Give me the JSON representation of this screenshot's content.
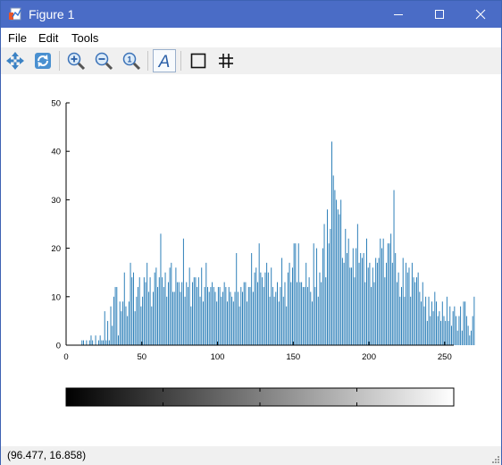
{
  "window": {
    "title": "Figure 1",
    "controls": [
      "minimize",
      "maximize",
      "close"
    ]
  },
  "menu": {
    "items": [
      {
        "label": "File"
      },
      {
        "label": "Edit"
      },
      {
        "label": "Tools"
      }
    ]
  },
  "toolbar": {
    "buttons": [
      {
        "name": "pan-icon"
      },
      {
        "name": "rotate-icon"
      },
      {
        "name": "zoom-in-icon"
      },
      {
        "name": "zoom-out-icon"
      },
      {
        "name": "zoom-reset-icon"
      },
      {
        "name": "insert-text-icon",
        "label": "A"
      },
      {
        "name": "toggle-axes-box-icon"
      },
      {
        "name": "toggle-grid-icon"
      }
    ]
  },
  "status": {
    "coordinates": "(96.477, 16.858)"
  },
  "colors": {
    "titlebar": "#4a6cc6",
    "bars": "#1f77b4",
    "toolbar": "#f0f0f0"
  },
  "chart_data": {
    "type": "bar",
    "xlim": [
      0,
      256
    ],
    "ylim": [
      0,
      50
    ],
    "xticks": [
      0,
      50,
      100,
      150,
      200,
      250
    ],
    "yticks": [
      0,
      10,
      20,
      30,
      40,
      50
    ],
    "grid": false,
    "colorbar": {
      "colormap": "gray",
      "orientation": "horizontal",
      "range": [
        0,
        255
      ]
    },
    "x_start": 0,
    "values": [
      0,
      0,
      0,
      0,
      0,
      0,
      0,
      0,
      0,
      0,
      1,
      1,
      0,
      1,
      0,
      1,
      2,
      1,
      0,
      2,
      0,
      1,
      2,
      1,
      1,
      7,
      1,
      5,
      1,
      8,
      4,
      10,
      12,
      12,
      2,
      9,
      7,
      9,
      15,
      8,
      6,
      9,
      17,
      14,
      15,
      7,
      10,
      12,
      14,
      8,
      10,
      14,
      13,
      17,
      11,
      14,
      8,
      11,
      15,
      16,
      12,
      14,
      23,
      14,
      12,
      15,
      10,
      13,
      16,
      17,
      11,
      11,
      16,
      13,
      13,
      11,
      13,
      22,
      10,
      13,
      12,
      16,
      8,
      13,
      14,
      14,
      12,
      14,
      10,
      16,
      9,
      12,
      17,
      12,
      11,
      12,
      13,
      12,
      11,
      9,
      12,
      12,
      10,
      11,
      13,
      12,
      9,
      12,
      11,
      10,
      9,
      11,
      19,
      11,
      8,
      12,
      11,
      13,
      13,
      9,
      12,
      12,
      19,
      11,
      15,
      16,
      13,
      21,
      15,
      14,
      12,
      15,
      17,
      15,
      10,
      16,
      12,
      10,
      11,
      13,
      9,
      12,
      18,
      10,
      13,
      8,
      15,
      17,
      13,
      16,
      21,
      21,
      13,
      21,
      13,
      13,
      12,
      12,
      17,
      12,
      14,
      11,
      9,
      21,
      12,
      20,
      10,
      15,
      13,
      20,
      25,
      14,
      28,
      21,
      24,
      42,
      35,
      32,
      30,
      28,
      27,
      30,
      18,
      17,
      24,
      19,
      22,
      16,
      16,
      20,
      14,
      20,
      25,
      17,
      19,
      18,
      19,
      13,
      22,
      16,
      17,
      12,
      16,
      13,
      18,
      17,
      18,
      22,
      20,
      22,
      14,
      17,
      21,
      21,
      23,
      17,
      32,
      19,
      13,
      15,
      10,
      12,
      18,
      10,
      17,
      15,
      16,
      10,
      17,
      14,
      13,
      14,
      15,
      11,
      9,
      13,
      8,
      10,
      5,
      10,
      6,
      9,
      7,
      11,
      9,
      6,
      7,
      5,
      9,
      6,
      5,
      10,
      5,
      8,
      4,
      7,
      8,
      6,
      3,
      6,
      8,
      3,
      9,
      9,
      6,
      4,
      2,
      3,
      6,
      10
    ]
  }
}
